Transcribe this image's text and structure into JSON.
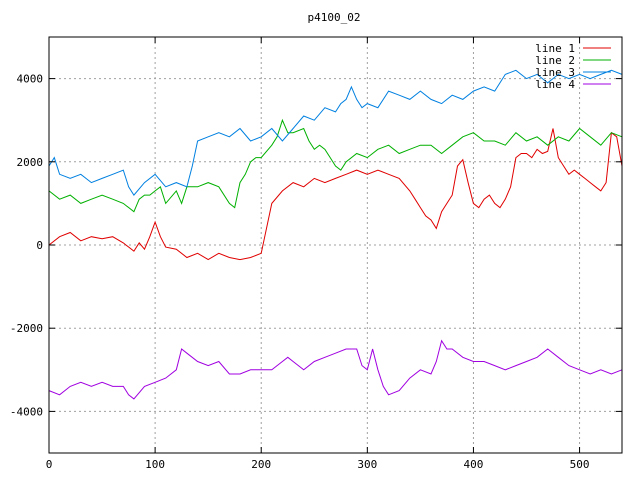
{
  "chart_data": {
    "type": "line",
    "title": "p4100_02",
    "xlabel": "",
    "ylabel": "",
    "xlim": [
      0,
      540
    ],
    "ylim": [
      -5000,
      5000
    ],
    "x_ticks": [
      0,
      100,
      200,
      300,
      400,
      500
    ],
    "y_ticks": [
      -4000,
      -2000,
      0,
      2000,
      4000
    ],
    "grid": true,
    "legend_position": "top-right",
    "series": [
      {
        "name": "line 1",
        "color": "#e00000",
        "points": [
          [
            0,
            0
          ],
          [
            10,
            200
          ],
          [
            20,
            300
          ],
          [
            30,
            100
          ],
          [
            40,
            200
          ],
          [
            50,
            150
          ],
          [
            60,
            200
          ],
          [
            70,
            50
          ],
          [
            80,
            -150
          ],
          [
            85,
            50
          ],
          [
            90,
            -100
          ],
          [
            95,
            200
          ],
          [
            100,
            550
          ],
          [
            105,
            200
          ],
          [
            110,
            -50
          ],
          [
            120,
            -100
          ],
          [
            130,
            -300
          ],
          [
            140,
            -200
          ],
          [
            150,
            -350
          ],
          [
            160,
            -200
          ],
          [
            170,
            -300
          ],
          [
            180,
            -350
          ],
          [
            190,
            -300
          ],
          [
            200,
            -200
          ],
          [
            210,
            1000
          ],
          [
            220,
            1300
          ],
          [
            230,
            1500
          ],
          [
            240,
            1400
          ],
          [
            250,
            1600
          ],
          [
            260,
            1500
          ],
          [
            270,
            1600
          ],
          [
            280,
            1700
          ],
          [
            290,
            1800
          ],
          [
            300,
            1700
          ],
          [
            310,
            1800
          ],
          [
            320,
            1700
          ],
          [
            330,
            1600
          ],
          [
            340,
            1300
          ],
          [
            345,
            1100
          ],
          [
            350,
            900
          ],
          [
            355,
            700
          ],
          [
            360,
            600
          ],
          [
            365,
            400
          ],
          [
            370,
            800
          ],
          [
            375,
            1000
          ],
          [
            380,
            1200
          ],
          [
            385,
            1900
          ],
          [
            390,
            2050
          ],
          [
            395,
            1500
          ],
          [
            400,
            1000
          ],
          [
            405,
            900
          ],
          [
            410,
            1100
          ],
          [
            415,
            1200
          ],
          [
            420,
            1000
          ],
          [
            425,
            900
          ],
          [
            430,
            1100
          ],
          [
            435,
            1400
          ],
          [
            440,
            2100
          ],
          [
            445,
            2200
          ],
          [
            450,
            2200
          ],
          [
            455,
            2100
          ],
          [
            460,
            2300
          ],
          [
            465,
            2200
          ],
          [
            470,
            2250
          ],
          [
            475,
            2800
          ],
          [
            480,
            2100
          ],
          [
            485,
            1900
          ],
          [
            490,
            1700
          ],
          [
            495,
            1800
          ],
          [
            500,
            1700
          ],
          [
            505,
            1600
          ],
          [
            510,
            1500
          ],
          [
            515,
            1400
          ],
          [
            520,
            1300
          ],
          [
            525,
            1500
          ],
          [
            530,
            2700
          ],
          [
            535,
            2600
          ],
          [
            540,
            1900
          ]
        ]
      },
      {
        "name": "line 2",
        "color": "#00b000",
        "points": [
          [
            0,
            1300
          ],
          [
            10,
            1100
          ],
          [
            20,
            1200
          ],
          [
            30,
            1000
          ],
          [
            40,
            1100
          ],
          [
            50,
            1200
          ],
          [
            60,
            1100
          ],
          [
            70,
            1000
          ],
          [
            80,
            800
          ],
          [
            85,
            1100
          ],
          [
            90,
            1200
          ],
          [
            95,
            1200
          ],
          [
            100,
            1300
          ],
          [
            105,
            1400
          ],
          [
            110,
            1000
          ],
          [
            120,
            1300
          ],
          [
            125,
            1000
          ],
          [
            130,
            1400
          ],
          [
            140,
            1400
          ],
          [
            150,
            1500
          ],
          [
            160,
            1400
          ],
          [
            170,
            1000
          ],
          [
            175,
            900
          ],
          [
            180,
            1500
          ],
          [
            185,
            1700
          ],
          [
            190,
            2000
          ],
          [
            195,
            2100
          ],
          [
            200,
            2100
          ],
          [
            210,
            2400
          ],
          [
            215,
            2600
          ],
          [
            220,
            3000
          ],
          [
            225,
            2700
          ],
          [
            230,
            2700
          ],
          [
            240,
            2800
          ],
          [
            245,
            2500
          ],
          [
            250,
            2300
          ],
          [
            255,
            2400
          ],
          [
            260,
            2300
          ],
          [
            265,
            2100
          ],
          [
            270,
            1900
          ],
          [
            275,
            1800
          ],
          [
            280,
            2000
          ],
          [
            290,
            2200
          ],
          [
            300,
            2100
          ],
          [
            310,
            2300
          ],
          [
            320,
            2400
          ],
          [
            330,
            2200
          ],
          [
            340,
            2300
          ],
          [
            350,
            2400
          ],
          [
            360,
            2400
          ],
          [
            370,
            2200
          ],
          [
            380,
            2400
          ],
          [
            390,
            2600
          ],
          [
            400,
            2700
          ],
          [
            410,
            2500
          ],
          [
            420,
            2500
          ],
          [
            430,
            2400
          ],
          [
            440,
            2700
          ],
          [
            450,
            2500
          ],
          [
            460,
            2600
          ],
          [
            470,
            2400
          ],
          [
            480,
            2600
          ],
          [
            490,
            2500
          ],
          [
            500,
            2800
          ],
          [
            510,
            2600
          ],
          [
            520,
            2400
          ],
          [
            530,
            2700
          ],
          [
            540,
            2600
          ]
        ]
      },
      {
        "name": "line 3",
        "color": "#0080e0",
        "points": [
          [
            0,
            1900
          ],
          [
            5,
            2100
          ],
          [
            10,
            1700
          ],
          [
            20,
            1600
          ],
          [
            30,
            1700
          ],
          [
            40,
            1500
          ],
          [
            50,
            1600
          ],
          [
            60,
            1700
          ],
          [
            70,
            1800
          ],
          [
            75,
            1400
          ],
          [
            80,
            1200
          ],
          [
            90,
            1500
          ],
          [
            100,
            1700
          ],
          [
            110,
            1400
          ],
          [
            120,
            1500
          ],
          [
            130,
            1400
          ],
          [
            135,
            1900
          ],
          [
            140,
            2500
          ],
          [
            150,
            2600
          ],
          [
            160,
            2700
          ],
          [
            170,
            2600
          ],
          [
            180,
            2800
          ],
          [
            190,
            2500
          ],
          [
            200,
            2600
          ],
          [
            210,
            2800
          ],
          [
            220,
            2500
          ],
          [
            230,
            2800
          ],
          [
            240,
            3100
          ],
          [
            250,
            3000
          ],
          [
            260,
            3300
          ],
          [
            270,
            3200
          ],
          [
            275,
            3400
          ],
          [
            280,
            3500
          ],
          [
            285,
            3800
          ],
          [
            290,
            3500
          ],
          [
            295,
            3300
          ],
          [
            300,
            3400
          ],
          [
            310,
            3300
          ],
          [
            320,
            3700
          ],
          [
            330,
            3600
          ],
          [
            340,
            3500
          ],
          [
            350,
            3700
          ],
          [
            360,
            3500
          ],
          [
            370,
            3400
          ],
          [
            380,
            3600
          ],
          [
            390,
            3500
          ],
          [
            400,
            3700
          ],
          [
            410,
            3800
          ],
          [
            420,
            3700
          ],
          [
            430,
            4100
          ],
          [
            440,
            4200
          ],
          [
            450,
            4000
          ],
          [
            460,
            4100
          ],
          [
            470,
            3900
          ],
          [
            480,
            4100
          ],
          [
            490,
            4000
          ],
          [
            500,
            4100
          ],
          [
            510,
            4000
          ],
          [
            520,
            4100
          ],
          [
            530,
            4200
          ],
          [
            540,
            4100
          ]
        ]
      },
      {
        "name": "line 4",
        "color": "#a000e0",
        "points": [
          [
            0,
            -3500
          ],
          [
            10,
            -3600
          ],
          [
            20,
            -3400
          ],
          [
            30,
            -3300
          ],
          [
            40,
            -3400
          ],
          [
            50,
            -3300
          ],
          [
            60,
            -3400
          ],
          [
            70,
            -3400
          ],
          [
            75,
            -3600
          ],
          [
            80,
            -3700
          ],
          [
            90,
            -3400
          ],
          [
            100,
            -3300
          ],
          [
            110,
            -3200
          ],
          [
            120,
            -3000
          ],
          [
            125,
            -2500
          ],
          [
            130,
            -2600
          ],
          [
            140,
            -2800
          ],
          [
            150,
            -2900
          ],
          [
            160,
            -2800
          ],
          [
            170,
            -3100
          ],
          [
            180,
            -3100
          ],
          [
            190,
            -3000
          ],
          [
            200,
            -3000
          ],
          [
            210,
            -3000
          ],
          [
            220,
            -2800
          ],
          [
            225,
            -2700
          ],
          [
            230,
            -2800
          ],
          [
            240,
            -3000
          ],
          [
            250,
            -2800
          ],
          [
            260,
            -2700
          ],
          [
            270,
            -2600
          ],
          [
            280,
            -2500
          ],
          [
            290,
            -2500
          ],
          [
            295,
            -2900
          ],
          [
            300,
            -3000
          ],
          [
            305,
            -2500
          ],
          [
            310,
            -3000
          ],
          [
            315,
            -3400
          ],
          [
            320,
            -3600
          ],
          [
            330,
            -3500
          ],
          [
            340,
            -3200
          ],
          [
            350,
            -3000
          ],
          [
            360,
            -3100
          ],
          [
            365,
            -2800
          ],
          [
            370,
            -2300
          ],
          [
            375,
            -2500
          ],
          [
            380,
            -2500
          ],
          [
            390,
            -2700
          ],
          [
            400,
            -2800
          ],
          [
            410,
            -2800
          ],
          [
            420,
            -2900
          ],
          [
            430,
            -3000
          ],
          [
            440,
            -2900
          ],
          [
            450,
            -2800
          ],
          [
            460,
            -2700
          ],
          [
            470,
            -2500
          ],
          [
            480,
            -2700
          ],
          [
            490,
            -2900
          ],
          [
            500,
            -3000
          ],
          [
            510,
            -3100
          ],
          [
            520,
            -3000
          ],
          [
            530,
            -3100
          ],
          [
            540,
            -3000
          ]
        ]
      }
    ]
  }
}
